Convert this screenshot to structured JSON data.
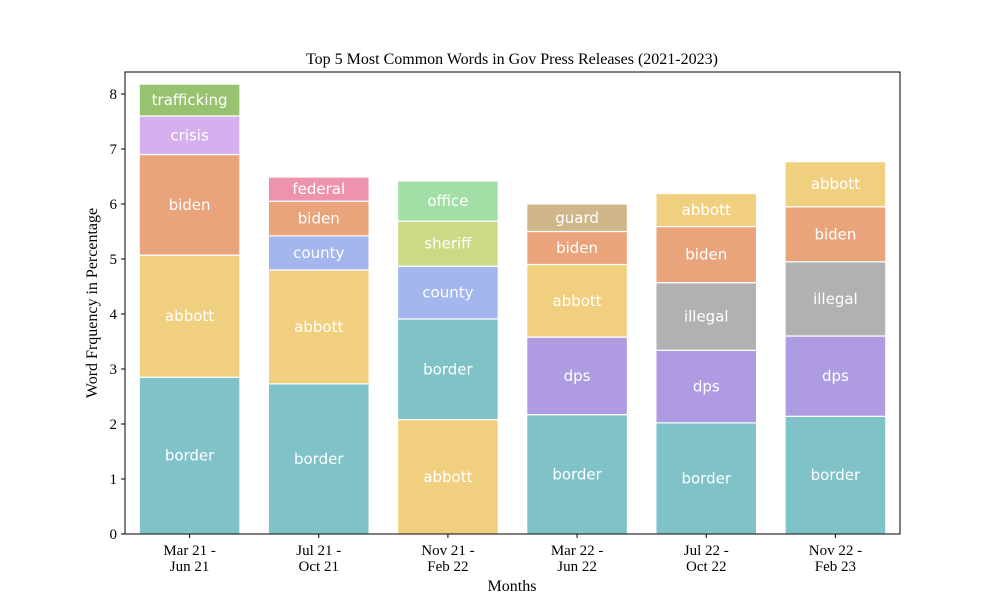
{
  "chart_data": {
    "type": "bar",
    "stacked": true,
    "title": "Top 5 Most Common Words in Gov Press Releases (2021-2023)",
    "xlabel": "Months",
    "ylabel": "Word Frquency in Percentage",
    "ylim": [
      0,
      8.4
    ],
    "yticks": [
      "0",
      "1",
      "2",
      "3",
      "4",
      "5",
      "6",
      "7",
      "8"
    ],
    "grid": false,
    "categories": [
      [
        "Mar 21 -",
        "Jun 21"
      ],
      [
        "Jul 21 -",
        "Oct 21"
      ],
      [
        "Nov 21 -",
        "Feb 22"
      ],
      [
        "Mar 22 -",
        "Jun 22"
      ],
      [
        "Jul 22 -",
        "Oct 22"
      ],
      [
        "Nov 22 -",
        "Feb 23"
      ]
    ],
    "colors": {
      "border": "#7fc3c8",
      "abbott": "#f0cf7f",
      "biden": "#eaa47c",
      "crisis": "#d6b0ee",
      "trafficking": "#97c26f",
      "county": "#a4b6ee",
      "federal": "#ee93ad",
      "sheriff": "#cdd985",
      "office": "#a2dfa6",
      "dps": "#ae9be1",
      "guard": "#cfb78a",
      "illegal": "#b1b1b1"
    },
    "stacks": [
      [
        {
          "word": "border",
          "value": 2.85
        },
        {
          "word": "abbott",
          "value": 2.22
        },
        {
          "word": "biden",
          "value": 1.83
        },
        {
          "word": "crisis",
          "value": 0.7
        },
        {
          "word": "trafficking",
          "value": 0.58
        }
      ],
      [
        {
          "word": "border",
          "value": 2.73
        },
        {
          "word": "abbott",
          "value": 2.07
        },
        {
          "word": "county",
          "value": 0.62
        },
        {
          "word": "biden",
          "value": 0.63
        },
        {
          "word": "federal",
          "value": 0.44
        }
      ],
      [
        {
          "word": "abbott",
          "value": 2.08
        },
        {
          "word": "border",
          "value": 1.83
        },
        {
          "word": "county",
          "value": 0.96
        },
        {
          "word": "sheriff",
          "value": 0.82
        },
        {
          "word": "office",
          "value": 0.73
        }
      ],
      [
        {
          "word": "border",
          "value": 2.17
        },
        {
          "word": "dps",
          "value": 1.41
        },
        {
          "word": "abbott",
          "value": 1.32
        },
        {
          "word": "biden",
          "value": 0.6
        },
        {
          "word": "guard",
          "value": 0.5
        }
      ],
      [
        {
          "word": "border",
          "value": 2.02
        },
        {
          "word": "dps",
          "value": 1.32
        },
        {
          "word": "illegal",
          "value": 1.23
        },
        {
          "word": "biden",
          "value": 1.02
        },
        {
          "word": "abbott",
          "value": 0.6
        }
      ],
      [
        {
          "word": "border",
          "value": 2.14
        },
        {
          "word": "dps",
          "value": 1.46
        },
        {
          "word": "illegal",
          "value": 1.35
        },
        {
          "word": "biden",
          "value": 1.0
        },
        {
          "word": "abbott",
          "value": 0.82
        }
      ]
    ]
  }
}
